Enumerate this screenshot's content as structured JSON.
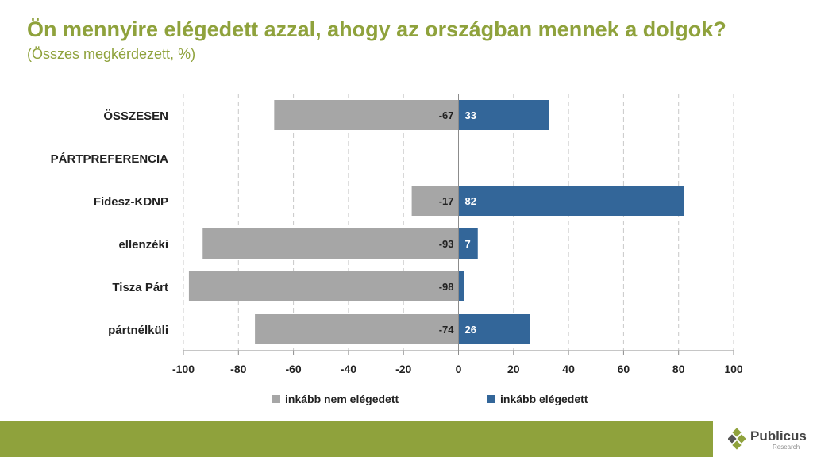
{
  "header": {
    "title": "Ön mennyire elégedett azzal, ahogy az országban mennek a dolgok?",
    "subtitle": "(Összes megkérdezett, %)"
  },
  "colors": {
    "negative": "#a6a6a6",
    "positive": "#336699",
    "accent": "#8fa23c"
  },
  "chart_data": {
    "type": "bar",
    "orientation": "horizontal-diverging",
    "categories": [
      "ÖSSZESEN",
      "PÁRTPREFERENCIA",
      "Fidesz-KDNP",
      "ellenzéki",
      "Tisza Párt",
      "pártnélküli"
    ],
    "series": [
      {
        "name": "inkább nem elégedett",
        "values": [
          -67,
          null,
          -17,
          -93,
          -98,
          -74
        ]
      },
      {
        "name": "inkább elégedett",
        "values": [
          33,
          null,
          82,
          7,
          2,
          26
        ]
      }
    ],
    "data_labels": [
      [
        "-67",
        "",
        "-17",
        "-93",
        "-98",
        "-74"
      ],
      [
        "33",
        "",
        "82",
        "7",
        "",
        "26"
      ]
    ],
    "xlim": [
      -100,
      100
    ],
    "xticks": [
      -100,
      -80,
      -60,
      -40,
      -20,
      0,
      20,
      40,
      60,
      80,
      100
    ],
    "grid": "vertical-dashed",
    "legend": "bottom"
  },
  "logo": {
    "name": "Publicus",
    "sub": "Research"
  }
}
